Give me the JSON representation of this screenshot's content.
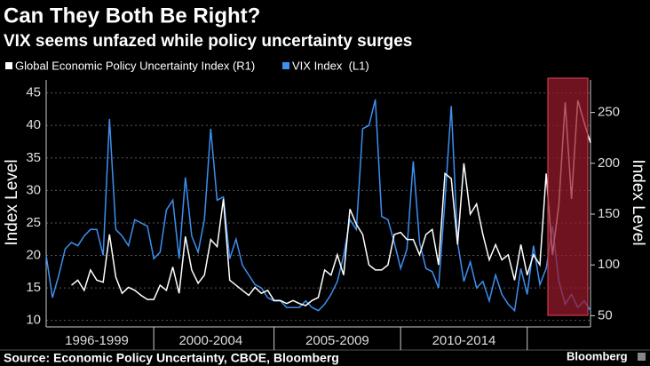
{
  "chart_data": {
    "type": "line",
    "title": "Can They Both Be Right?",
    "subtitle": "VIX seems unfazed while policy uncertainty surges",
    "y_label": "Index Level",
    "y2_label": "Index Level",
    "source": "Source: Economic Policy Uncertainty, CBOE, Bloomberg",
    "brand": "Bloomberg",
    "x": [
      1996,
      1996.25,
      1996.5,
      1996.75,
      1997,
      1997.25,
      1997.5,
      1997.75,
      1998,
      1998.25,
      1998.5,
      1998.75,
      1999,
      1999.25,
      1999.5,
      1999.75,
      2000,
      2000.25,
      2000.5,
      2000.75,
      2001,
      2001.25,
      2001.5,
      2001.75,
      2002,
      2002.25,
      2002.5,
      2002.75,
      2003,
      2003.25,
      2003.5,
      2003.75,
      2004,
      2004.25,
      2004.5,
      2004.75,
      2005,
      2005.25,
      2005.5,
      2005.75,
      2006,
      2006.25,
      2006.5,
      2006.75,
      2007,
      2007.25,
      2007.5,
      2007.75,
      2008,
      2008.25,
      2008.5,
      2008.75,
      2009,
      2009.25,
      2009.5,
      2009.75,
      2010,
      2010.25,
      2010.5,
      2010.75,
      2011,
      2011.25,
      2011.5,
      2011.75,
      2012,
      2012.25,
      2012.5,
      2012.75,
      2013,
      2013.25,
      2013.5,
      2013.75,
      2014,
      2014.25,
      2014.5,
      2014.75,
      2015,
      2015.25,
      2015.5,
      2015.75,
      2016,
      2016.25,
      2016.5,
      2016.75,
      2017,
      2017.25,
      2017.5
    ],
    "xlim": [
      1996,
      2017.5
    ],
    "xticks": [
      {
        "value": 1998,
        "label": "1996-1999"
      },
      {
        "value": 2002.5,
        "label": "2000-2004"
      },
      {
        "value": 2007.5,
        "label": "2005-2009"
      },
      {
        "value": 2012.5,
        "label": "2010-2014"
      }
    ],
    "ylim": [
      9,
      47
    ],
    "yticks": [
      10,
      15,
      20,
      25,
      30,
      35,
      40,
      45
    ],
    "y2lim": [
      39,
      282
    ],
    "y2ticks": [
      50,
      100,
      150,
      200,
      250
    ],
    "grid": true,
    "series": [
      {
        "name": "Global Economic Policy Uncertainty Index (R1)",
        "color": "#ffffff",
        "axis": "y2",
        "values": [
          null,
          null,
          null,
          null,
          80,
          85,
          75,
          95,
          85,
          83,
          130,
          88,
          72,
          78,
          75,
          70,
          66,
          66,
          80,
          75,
          98,
          72,
          128,
          95,
          82,
          90,
          125,
          118,
          165,
          85,
          80,
          75,
          70,
          78,
          72,
          75,
          65,
          65,
          62,
          65,
          62,
          60,
          65,
          68,
          95,
          90,
          110,
          90,
          155,
          140,
          130,
          100,
          95,
          95,
          100,
          130,
          132,
          125,
          125,
          110,
          130,
          135,
          100,
          190,
          185,
          120,
          200,
          150,
          160,
          130,
          105,
          120,
          105,
          110,
          85,
          120,
          90,
          110,
          100,
          190,
          110,
          160,
          260,
          165,
          262,
          240,
          220
        ]
      },
      {
        "name": "VIX Index  (L1)",
        "color": "#3d8ff0",
        "values": [
          20,
          13.5,
          17,
          21,
          22,
          21.5,
          23,
          24,
          24,
          20,
          41,
          24,
          23,
          21.5,
          25.5,
          25,
          24.5,
          19.5,
          20.5,
          27,
          28.5,
          19.5,
          32,
          23,
          20.5,
          25.5,
          39.5,
          28.5,
          29,
          19.5,
          22.5,
          18.5,
          17,
          15.5,
          15,
          13.5,
          13,
          13,
          12,
          12,
          12,
          13,
          12,
          11.5,
          12.5,
          14,
          16,
          20,
          25.5,
          24,
          39.5,
          40,
          44,
          26,
          25.5,
          22,
          18,
          21,
          34.5,
          22,
          18,
          17.5,
          15,
          28.5,
          43,
          22,
          16,
          19,
          15,
          16,
          13,
          17,
          14,
          12.5,
          11.5,
          18,
          14,
          21.5,
          15.5,
          18,
          24.5,
          16,
          12.5,
          14,
          12,
          13,
          11.5
        ]
      }
    ]
  }
}
